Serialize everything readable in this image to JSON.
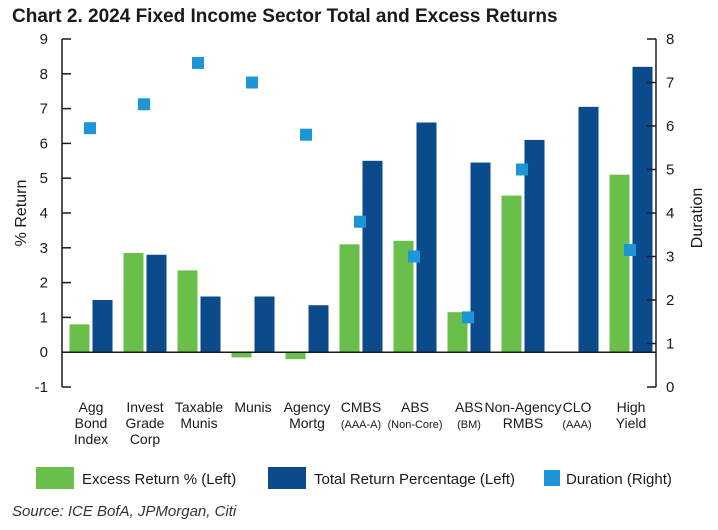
{
  "chart_data": {
    "type": "bar",
    "title": "Chart 2. 2024 Fixed Income Sector Total and Excess Returns",
    "source": "Source: ICE BofA, JPMorgan, Citi",
    "ylabel_left": "% Return",
    "ylabel_right": "Duration",
    "ylim_left": [
      -1,
      9
    ],
    "ylim_right": [
      0,
      8
    ],
    "yticks_left": [
      "-1",
      "0",
      "1",
      "2",
      "3",
      "4",
      "5",
      "6",
      "7",
      "8",
      "9"
    ],
    "yticks_right": [
      "0",
      "1",
      "2",
      "3",
      "4",
      "5",
      "6",
      "7",
      "8"
    ],
    "categories": [
      {
        "line1": "Agg",
        "line2": "Bond",
        "line3": "Index"
      },
      {
        "line1": "Invest",
        "line2": "Grade",
        "line3": "Corp"
      },
      {
        "line1": "Taxable",
        "line2": "Munis",
        "line3": ""
      },
      {
        "line1": "Munis",
        "line2": "",
        "line3": ""
      },
      {
        "line1": "Agency",
        "line2": "Mortg",
        "line3": ""
      },
      {
        "line1": "CMBS",
        "line2": "(AAA-A)",
        "line3": ""
      },
      {
        "line1": "ABS",
        "line2": "(Non-Core)",
        "line3": ""
      },
      {
        "line1": "ABS",
        "line2": "(BM)",
        "line3": ""
      },
      {
        "line1": "Non-Agency",
        "line2": "RMBS",
        "line3": ""
      },
      {
        "line1": "CLO",
        "line2": "(AAA)",
        "line3": ""
      },
      {
        "line1": "High",
        "line2": "Yield",
        "line3": ""
      }
    ],
    "series": [
      {
        "name": "Excess Return % (Left)",
        "color": "#6abf4b",
        "axis": "left",
        "values": [
          0.8,
          2.85,
          2.35,
          -0.15,
          -0.2,
          3.1,
          3.2,
          1.15,
          4.5,
          0,
          5.1
        ]
      },
      {
        "name": "Total Return Percentage (Left)",
        "color": "#0b4a8b",
        "axis": "left",
        "values": [
          1.5,
          2.8,
          1.6,
          1.6,
          1.35,
          5.5,
          6.6,
          5.45,
          6.1,
          7.05,
          8.2
        ]
      },
      {
        "name": "Duration (Right)",
        "color": "#1e95d6",
        "axis": "right",
        "values": [
          5.95,
          6.5,
          7.45,
          7.0,
          5.8,
          3.8,
          3.0,
          1.6,
          5.0,
          null,
          3.15
        ]
      }
    ]
  },
  "legend": {
    "excess": "Excess Return % (Left)",
    "total": "Total Return Percentage (Left)",
    "duration": "Duration (Right)"
  }
}
